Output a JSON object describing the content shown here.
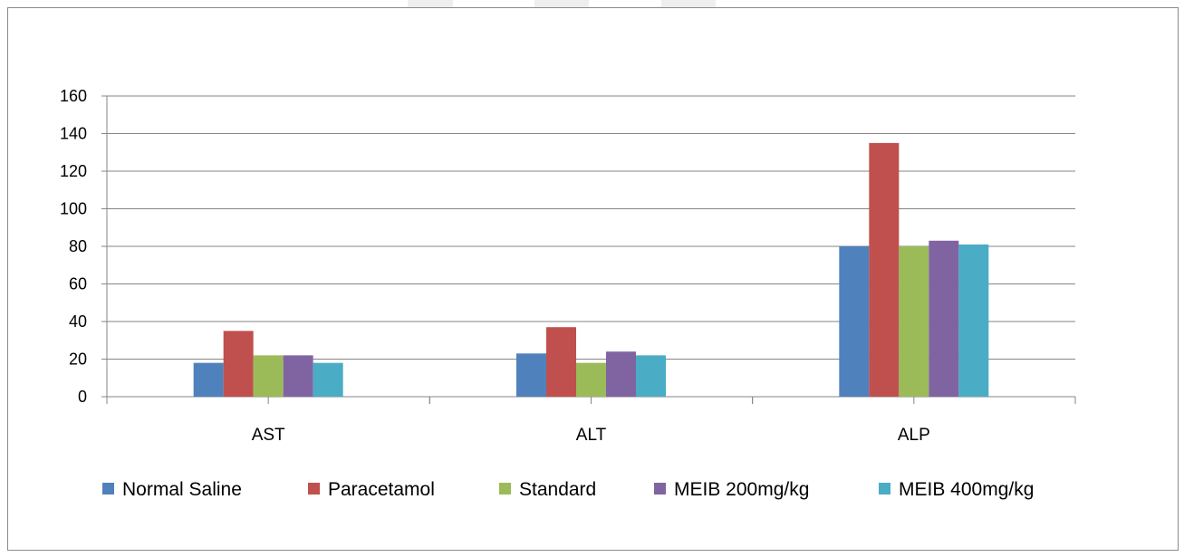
{
  "chart_data": {
    "type": "bar",
    "title": "",
    "xlabel": "",
    "ylabel": "",
    "ylim": [
      0,
      160
    ],
    "yticks": [
      0,
      20,
      40,
      60,
      80,
      100,
      120,
      140,
      160
    ],
    "grid": true,
    "legend_position": "bottom",
    "categories": [
      "AST",
      "ALT",
      "ALP"
    ],
    "series": [
      {
        "name": "Normal Saline",
        "color": "#4f81bd",
        "values": [
          18,
          23,
          80
        ]
      },
      {
        "name": "Paracetamol",
        "color": "#c0504d",
        "values": [
          35,
          37,
          135
        ]
      },
      {
        "name": "Standard",
        "color": "#9bbb59",
        "values": [
          22,
          18,
          80
        ]
      },
      {
        "name": "MEIB 200mg/kg",
        "color": "#8064a2",
        "values": [
          22,
          24,
          83
        ]
      },
      {
        "name": "MEIB 400mg/kg",
        "color": "#4bacc6",
        "values": [
          18,
          22,
          81
        ]
      }
    ]
  }
}
